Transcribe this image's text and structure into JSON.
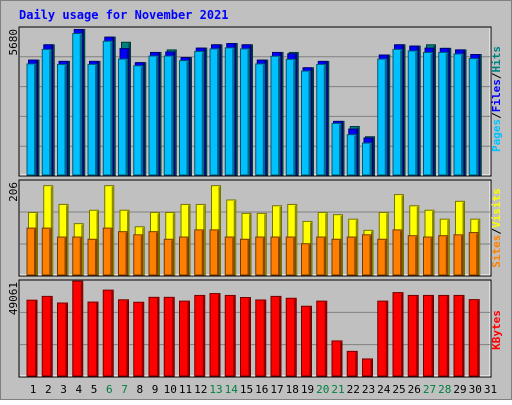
{
  "chart_data": {
    "type": "bar",
    "title": "Daily usage for November 2021",
    "categories": [
      "1",
      "2",
      "3",
      "4",
      "5",
      "6",
      "7",
      "8",
      "9",
      "10",
      "11",
      "12",
      "13",
      "14",
      "15",
      "16",
      "17",
      "18",
      "19",
      "20",
      "21",
      "22",
      "23",
      "24",
      "25",
      "26",
      "27",
      "28",
      "29",
      "30",
      "31"
    ],
    "weekend_days": [
      "6",
      "7",
      "13",
      "14",
      "20",
      "21",
      "27",
      "28"
    ],
    "panels": [
      {
        "id": "pages-files-hits",
        "ymax_label": "5680",
        "ymax": 5680,
        "legend": [
          "Pages",
          "/",
          "Files",
          "/",
          "Hits"
        ],
        "series": [
          {
            "name": "Hits",
            "color": "#008080",
            "values": [
              4500,
              5100,
              4450,
              5700,
              4450,
              5400,
              5200,
              4400,
              4800,
              4900,
              4600,
              4970,
              5100,
              5150,
              5100,
              4500,
              4800,
              4800,
              4200,
              4450,
              2100,
              1900,
              1500,
              4700,
              5100,
              5050,
              5100,
              4960,
              4900,
              4720,
              null
            ]
          },
          {
            "name": "Files",
            "color": "#0000ff",
            "values": [
              4500,
              5100,
              4450,
              5700,
              4450,
              5400,
              4950,
              4400,
              4800,
              4820,
              4600,
              4970,
              5100,
              5150,
              5100,
              4500,
              4800,
              4750,
              4200,
              4450,
              2100,
              1800,
              1450,
              4700,
              5100,
              5050,
              4970,
              4960,
              4900,
              4720,
              null
            ]
          },
          {
            "name": "Pages",
            "color": "#00c0ff",
            "values": [
              4350,
              4920,
              4330,
              5540,
              4330,
              5240,
              4540,
              4280,
              4660,
              4660,
              4480,
              4840,
              4940,
              4980,
              4940,
              4350,
              4650,
              4530,
              4070,
              4330,
              2020,
              1580,
              1250,
              4540,
              4920,
              4860,
              4800,
              4800,
              4740,
              4560,
              null
            ]
          }
        ]
      },
      {
        "id": "visits-sites",
        "ymax_label": "206",
        "ymax": 206,
        "legend": [
          "Sites",
          "/",
          "Visits"
        ],
        "series": [
          {
            "name": "Visits",
            "color": "#ffff00",
            "values": [
              140,
              200,
              158,
              115,
              145,
              200,
              145,
              108,
              140,
              140,
              158,
              158,
              200,
              168,
              138,
              138,
              155,
              158,
              120,
              140,
              135,
              125,
              100,
              140,
              180,
              155,
              145,
              125,
              165,
              125,
              null
            ]
          },
          {
            "name": "Sites",
            "color": "#ff8000",
            "values": [
              105,
              105,
              85,
              85,
              80,
              105,
              97,
              90,
              97,
              80,
              85,
              101,
              101,
              85,
              80,
              85,
              85,
              85,
              70,
              85,
              80,
              85,
              90,
              80,
              101,
              88,
              85,
              88,
              90,
              95,
              null
            ]
          }
        ]
      },
      {
        "id": "kbytes",
        "ymax_label": "49061",
        "ymax": 49061,
        "legend": [
          "KBytes"
        ],
        "series": [
          {
            "name": "KBytes",
            "color": "#ff0000",
            "values": [
              40000,
              42000,
              38500,
              50000,
              39000,
              45300,
              40200,
              38900,
              41500,
              41500,
              39500,
              42500,
              43500,
              42500,
              41400,
              40100,
              42000,
              41000,
              36800,
              39500,
              18500,
              13000,
              9000,
              39500,
              44000,
              42500,
              42500,
              42500,
              42500,
              40300,
              null
            ]
          }
        ]
      }
    ]
  },
  "colors": {
    "title": "#0000ff",
    "background": "#c0c0c0",
    "weekend_label": "#008040",
    "weekday_label": "#000000",
    "sites_legend": "#ff8000",
    "visits_legend": "#ffff00",
    "kbytes_legend": "#ff0000",
    "pages_legend": "#00c0ff",
    "files_legend": "#0000ff",
    "hits_legend": "#008080"
  }
}
